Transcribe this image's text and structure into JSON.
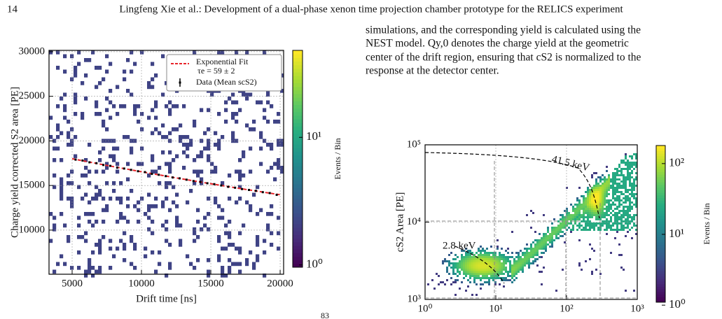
{
  "header": {
    "page": "14",
    "title": "Lingfeng Xie et al.: Development of a dual-phase xenon time projection chamber prototype for the RELICS experiment"
  },
  "text": {
    "lines": [
      "simulations, and the corresponding yield is calculated using the",
      "NEST model. Qy,0 denotes the charge yield at the geometric",
      "center of the drift region, ensuring that cS2 is normalized to the",
      "response at the detector center."
    ]
  },
  "footnote": "83",
  "chart_data": [
    {
      "type": "hist2d",
      "xlabel": "Drift time [ns]",
      "ylabel": "Charge yield corrected S2 area [PE]",
      "xlim": [
        3333,
        20250
      ],
      "ylim": [
        5050,
        30150
      ],
      "xticks": [
        5000,
        10000,
        15000,
        20000
      ],
      "yticks": [
        10000,
        15000,
        20000,
        25000,
        30000
      ],
      "grid": true,
      "annotation": "τe = 59 ± 2",
      "series": [
        {
          "name": "Exponential Fit",
          "color": "#e8242a",
          "style": "dashed",
          "x": [
            5000,
            7500,
            10000,
            12500,
            15000,
            17500,
            20000
          ],
          "values": [
            18000,
            17253,
            16538,
            15852,
            15195,
            14565,
            13961
          ]
        },
        {
          "name": "Data (Mean scS2)",
          "color": "#000000",
          "style": "points",
          "x": [
            5250,
            5750,
            6250,
            6750,
            7250,
            7750,
            8250,
            8750,
            9250,
            9750,
            10250,
            10750,
            11250,
            11750,
            12250,
            12750,
            13250,
            13750,
            14250,
            14750,
            15250,
            15750,
            16250,
            16750,
            17250,
            17750,
            18250,
            18750,
            19250,
            19750
          ],
          "values": [
            17900,
            17800,
            17600,
            17500,
            17300,
            17200,
            17000,
            16900,
            16750,
            16600,
            16500,
            16300,
            16200,
            16050,
            15900,
            15800,
            15650,
            15500,
            15400,
            15250,
            15150,
            15000,
            14850,
            14750,
            14600,
            14500,
            14400,
            14250,
            14150,
            13950
          ]
        }
      ],
      "colorbar": {
        "label": "Events / Bin",
        "log": true,
        "clim": [
          0.96,
          48
        ],
        "ticks": [
          {
            "value": 1,
            "label": "10⁰"
          },
          {
            "value": 10,
            "label": "10¹"
          }
        ]
      }
    },
    {
      "type": "hist2d",
      "ylabel": "cS2 Area [PE]",
      "xlog": true,
      "ylog": true,
      "xlim": [
        1,
        1000
      ],
      "ylim": [
        1000,
        100000
      ],
      "xticks": [
        {
          "value": 1,
          "label": "10⁰"
        },
        {
          "value": 10,
          "label": "10¹"
        },
        {
          "value": 100,
          "label": "10²"
        },
        {
          "value": 1000,
          "label": "10³"
        }
      ],
      "yticks": [
        {
          "value": 1000,
          "label": "10³"
        },
        {
          "value": 10000,
          "label": "10⁴"
        },
        {
          "value": 100000,
          "label": "10⁵"
        }
      ],
      "grid": true,
      "annotations": [
        "41.5 keV",
        "2.8 keV"
      ],
      "annotation_color": "#e8242a",
      "colorbar": {
        "label": "Events / Bin",
        "log": true,
        "clim": [
          1.1,
          180
        ],
        "ticks": [
          {
            "value": 1,
            "label": "10⁰"
          },
          {
            "value": 10,
            "label": "10¹"
          },
          {
            "value": 100,
            "label": "10²"
          }
        ]
      }
    }
  ]
}
